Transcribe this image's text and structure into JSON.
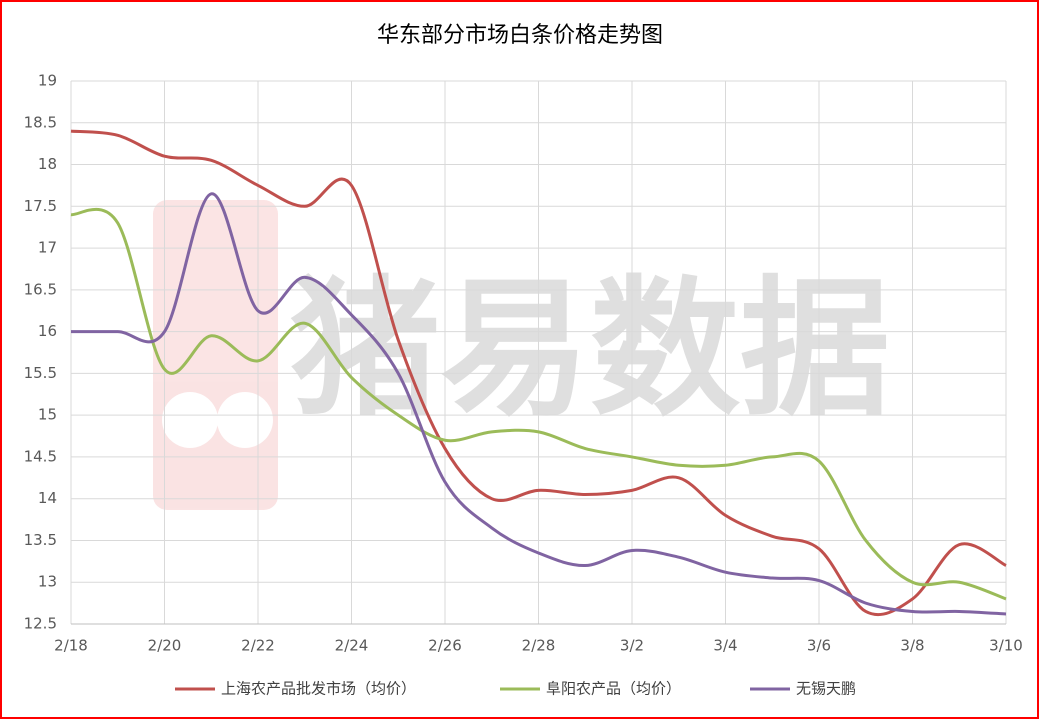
{
  "chart_data": {
    "type": "line",
    "title": "华东部分市场白条价格走势图",
    "watermark": "猪易数据",
    "categories": [
      "2/18",
      null,
      "2/20",
      null,
      "2/22",
      null,
      "2/24",
      null,
      "2/26",
      null,
      "2/28",
      null,
      "3/2",
      null,
      "3/4",
      null,
      "3/6",
      null,
      "3/8",
      null,
      "3/10"
    ],
    "series": [
      {
        "name": "上海农产品批发市场（均价）",
        "color": "#c0504d",
        "values": [
          18.4,
          18.35,
          18.1,
          18.05,
          17.75,
          17.5,
          17.75,
          15.9,
          14.6,
          14.0,
          14.1,
          14.05,
          14.1,
          14.25,
          13.8,
          13.55,
          13.4,
          12.65,
          12.8,
          13.45,
          13.2
        ]
      },
      {
        "name": "阜阳农产品（均价）",
        "color": "#9bbb59",
        "values": [
          17.4,
          17.3,
          15.55,
          15.95,
          15.65,
          16.1,
          15.45,
          15.0,
          14.7,
          14.8,
          14.8,
          14.6,
          14.5,
          14.4,
          14.4,
          14.5,
          14.45,
          13.5,
          13.0,
          13.0,
          12.8
        ]
      },
      {
        "name": "无锡天鹏",
        "color": "#8064a2",
        "values": [
          16.0,
          16.0,
          16.0,
          17.65,
          16.25,
          16.65,
          16.2,
          15.5,
          14.2,
          13.65,
          13.35,
          13.2,
          13.38,
          13.3,
          13.12,
          13.05,
          13.02,
          12.75,
          12.65,
          12.65,
          12.62
        ]
      }
    ],
    "ylim": [
      12.5,
      19
    ],
    "yticks": [
      12.5,
      13,
      13.5,
      14,
      14.5,
      15,
      15.5,
      16,
      16.5,
      17,
      17.5,
      18,
      18.5,
      19
    ],
    "grid": true,
    "legend": "bottom"
  }
}
